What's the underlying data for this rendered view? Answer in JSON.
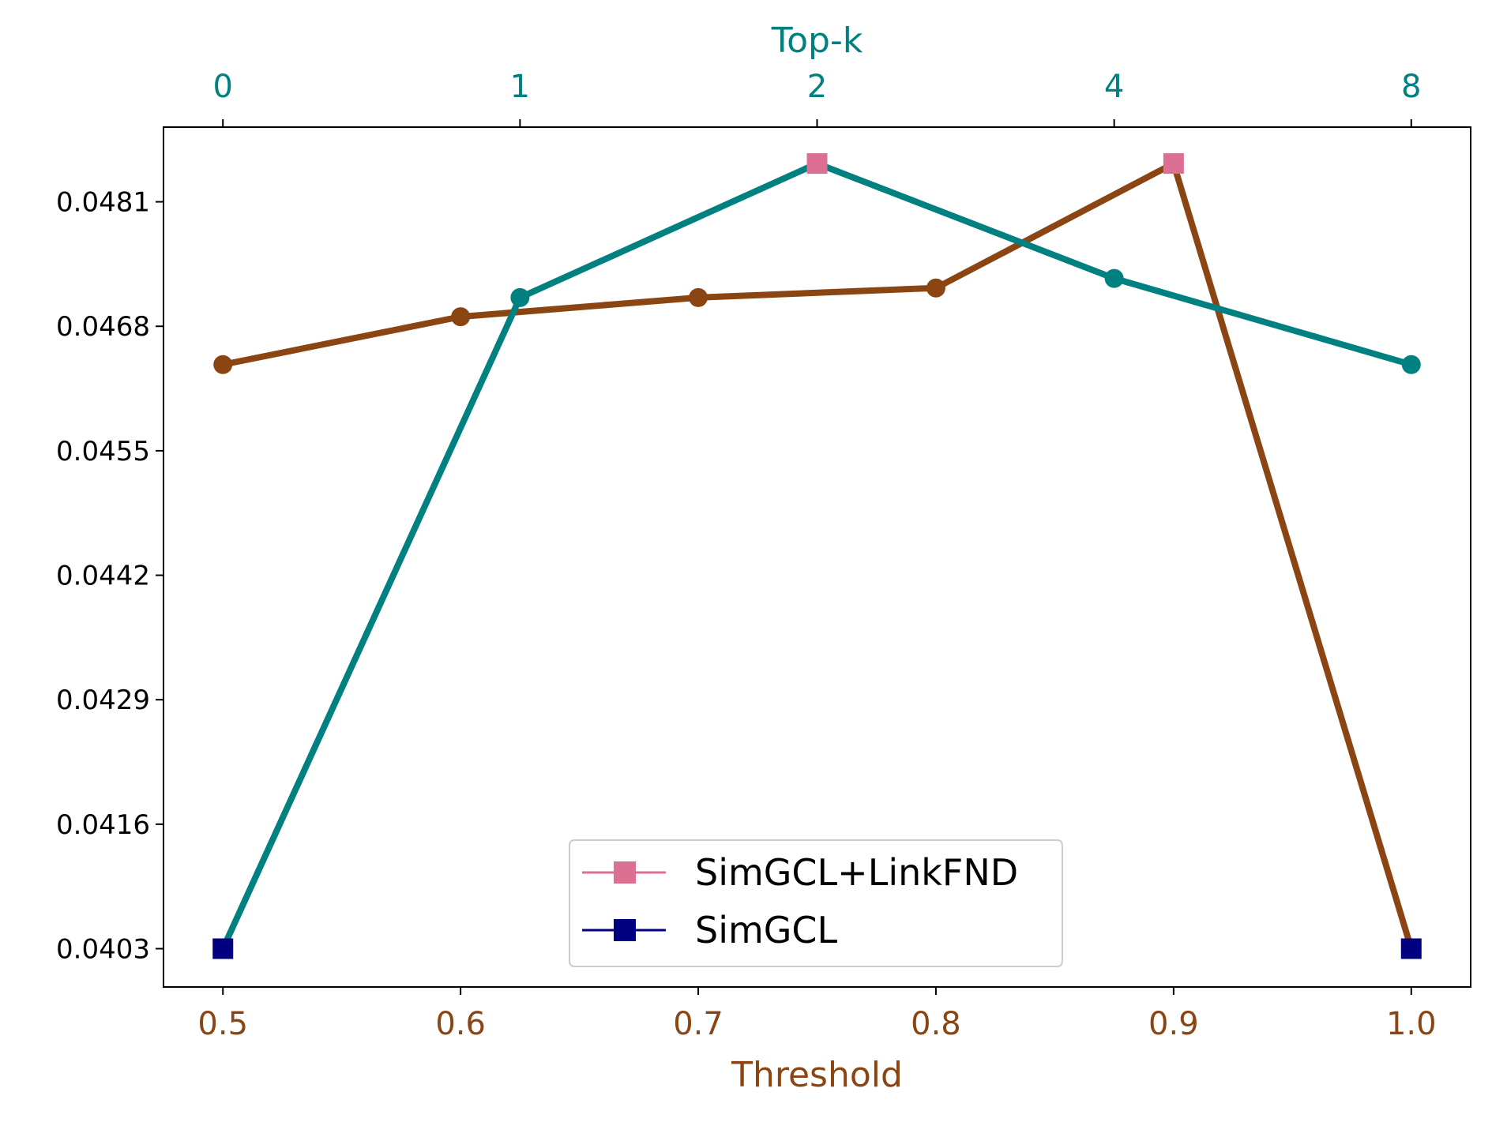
{
  "chart_data": {
    "type": "line",
    "title": "",
    "xlabel": "Threshold",
    "x2label": "Top-k",
    "ylabel": "",
    "bottom_axis": {
      "ticks": [
        0.5,
        0.6,
        0.7,
        0.8,
        0.9,
        1.0
      ],
      "tick_labels": [
        "0.5",
        "0.6",
        "0.7",
        "0.8",
        "0.9",
        "1.0"
      ],
      "range": [
        0.475,
        1.025
      ],
      "color": "#8B4513"
    },
    "top_axis": {
      "tick_labels": [
        "0",
        "1",
        "2",
        "4",
        "8"
      ],
      "color": "#008080"
    },
    "y_axis": {
      "ticks": [
        0.0403,
        0.0416,
        0.0429,
        0.0442,
        0.0455,
        0.0468,
        0.0481
      ],
      "tick_labels": [
        "0.0403",
        "0.0416",
        "0.0429",
        "0.0442",
        "0.0455",
        "0.0468",
        "0.0481"
      ],
      "range": [
        0.0399,
        0.04888
      ]
    },
    "grid": false,
    "legend_position": "lower center",
    "series": [
      {
        "axis": "bottom",
        "color": "#8B4513",
        "x": [
          0.5,
          0.6,
          0.7,
          0.8,
          0.9,
          1.0
        ],
        "y": [
          0.0464,
          0.0469,
          0.0471,
          0.0472,
          0.0485,
          0.0403
        ],
        "markers": [
          "circle",
          "circle",
          "circle",
          "circle",
          "square-pink",
          "square-navy"
        ]
      },
      {
        "axis": "top",
        "color": "#008080",
        "x": [
          "0",
          "1",
          "2",
          "4",
          "8"
        ],
        "y": [
          0.0403,
          0.0471,
          0.0485,
          0.0473,
          0.0464
        ],
        "markers": [
          "square-navy",
          "circle",
          "square-pink",
          "circle",
          "circle"
        ]
      }
    ],
    "legend": [
      {
        "label": "SimGCL+LinkFND",
        "color": "#DB7093",
        "marker": "square"
      },
      {
        "label": "SimGCL",
        "color": "#000080",
        "marker": "square"
      }
    ]
  }
}
